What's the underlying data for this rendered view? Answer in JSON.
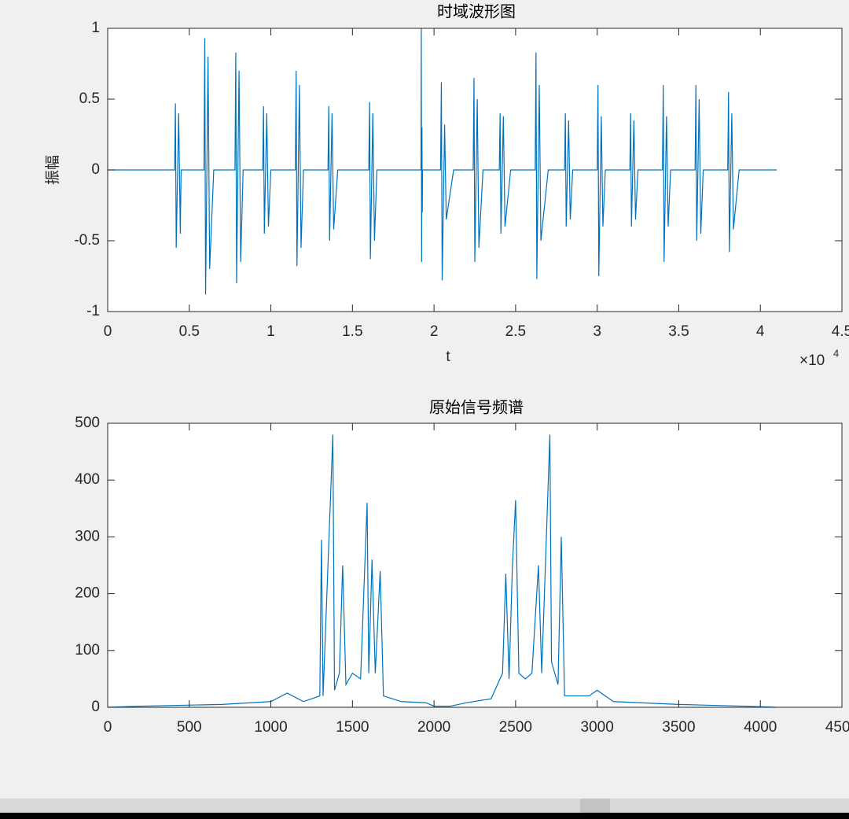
{
  "chart_data": [
    {
      "type": "line",
      "title": "时域波形图",
      "xlabel": "t",
      "ylabel": "振幅",
      "color": "#0072bd",
      "x_multiplier": {
        "base": "×10",
        "exponent": "4"
      },
      "xlim": [
        0,
        4.5
      ],
      "xticks": [
        0,
        0.5,
        1,
        1.5,
        2,
        2.5,
        3,
        3.5,
        4,
        4.5
      ],
      "ylim": [
        -1,
        1
      ],
      "yticks": [
        -1,
        -0.5,
        0,
        0.5,
        1
      ],
      "grid": false,
      "x": [
        0,
        0.41,
        0.415,
        0.42,
        0.435,
        0.445,
        0.45,
        0.59,
        0.595,
        0.6,
        0.615,
        0.625,
        0.65,
        0.78,
        0.785,
        0.79,
        0.805,
        0.815,
        0.83,
        0.95,
        0.955,
        0.96,
        0.975,
        0.985,
        1.0,
        1.15,
        1.155,
        1.16,
        1.175,
        1.185,
        1.2,
        1.35,
        1.355,
        1.36,
        1.375,
        1.385,
        1.41,
        1.6,
        1.605,
        1.61,
        1.625,
        1.635,
        1.65,
        1.92,
        1.922,
        1.924,
        1.926,
        1.928,
        1.93,
        2.04,
        2.045,
        2.05,
        2.065,
        2.075,
        2.12,
        2.24,
        2.245,
        2.25,
        2.265,
        2.275,
        2.3,
        2.4,
        2.405,
        2.41,
        2.425,
        2.435,
        2.47,
        2.62,
        2.625,
        2.63,
        2.645,
        2.655,
        2.7,
        2.8,
        2.805,
        2.81,
        2.825,
        2.835,
        2.85,
        3.0,
        3.005,
        3.01,
        3.025,
        3.035,
        3.05,
        3.2,
        3.205,
        3.21,
        3.225,
        3.235,
        3.25,
        3.4,
        3.405,
        3.41,
        3.425,
        3.435,
        3.45,
        3.6,
        3.605,
        3.61,
        3.625,
        3.635,
        3.65,
        3.8,
        3.805,
        3.81,
        3.825,
        3.835,
        3.87,
        4.1
      ],
      "values": [
        0,
        0,
        0.47,
        -0.55,
        0.4,
        -0.45,
        0,
        0,
        0.93,
        -0.88,
        0.8,
        -0.7,
        0,
        0,
        0.83,
        -0.8,
        0.7,
        -0.65,
        0,
        0,
        0.45,
        -0.45,
        0.4,
        -0.4,
        0,
        0,
        0.7,
        -0.68,
        0.6,
        -0.55,
        0,
        0,
        0.45,
        -0.5,
        0.4,
        -0.42,
        0,
        0,
        0.48,
        -0.63,
        0.4,
        -0.5,
        0,
        0,
        1.0,
        -0.65,
        0.3,
        -0.3,
        0,
        0,
        0.62,
        -0.78,
        0.32,
        -0.35,
        0,
        0,
        0.65,
        -0.65,
        0.5,
        -0.55,
        0,
        0,
        0.4,
        -0.45,
        0.38,
        -0.4,
        0,
        0,
        0.83,
        -0.77,
        0.6,
        -0.5,
        0,
        0,
        0.4,
        -0.4,
        0.35,
        -0.35,
        0,
        0,
        0.6,
        -0.75,
        0.38,
        -0.4,
        0,
        0,
        0.4,
        -0.4,
        0.35,
        -0.35,
        0,
        0,
        0.6,
        -0.65,
        0.38,
        -0.4,
        0,
        0,
        0.6,
        -0.5,
        0.5,
        -0.45,
        0,
        0,
        0.55,
        -0.58,
        0.4,
        -0.42,
        0,
        0
      ]
    },
    {
      "type": "line",
      "title": "原始信号频谱",
      "color": "#0072bd",
      "xlim": [
        0,
        4500
      ],
      "xticks": [
        0,
        500,
        1000,
        1500,
        2000,
        2500,
        3000,
        3500,
        4000,
        4500
      ],
      "ylim": [
        0,
        500
      ],
      "yticks": [
        0,
        100,
        200,
        300,
        400,
        500
      ],
      "grid": false,
      "x": [
        0,
        200,
        700,
        1000,
        1100,
        1200,
        1300,
        1310,
        1320,
        1380,
        1390,
        1420,
        1440,
        1460,
        1500,
        1550,
        1590,
        1600,
        1620,
        1640,
        1670,
        1690,
        1800,
        1950,
        2000,
        2100,
        2200,
        2350,
        2420,
        2440,
        2460,
        2480,
        2500,
        2520,
        2560,
        2600,
        2640,
        2660,
        2710,
        2720,
        2760,
        2780,
        2800,
        2950,
        3000,
        3100,
        3500,
        3900,
        4096
      ],
      "values": [
        0,
        2,
        5,
        10,
        25,
        10,
        20,
        295,
        20,
        480,
        30,
        60,
        250,
        40,
        60,
        50,
        360,
        60,
        260,
        60,
        240,
        20,
        10,
        8,
        2,
        2,
        8,
        15,
        60,
        235,
        50,
        245,
        365,
        60,
        50,
        60,
        250,
        60,
        480,
        80,
        40,
        300,
        20,
        20,
        30,
        10,
        5,
        2,
        0
      ]
    }
  ]
}
